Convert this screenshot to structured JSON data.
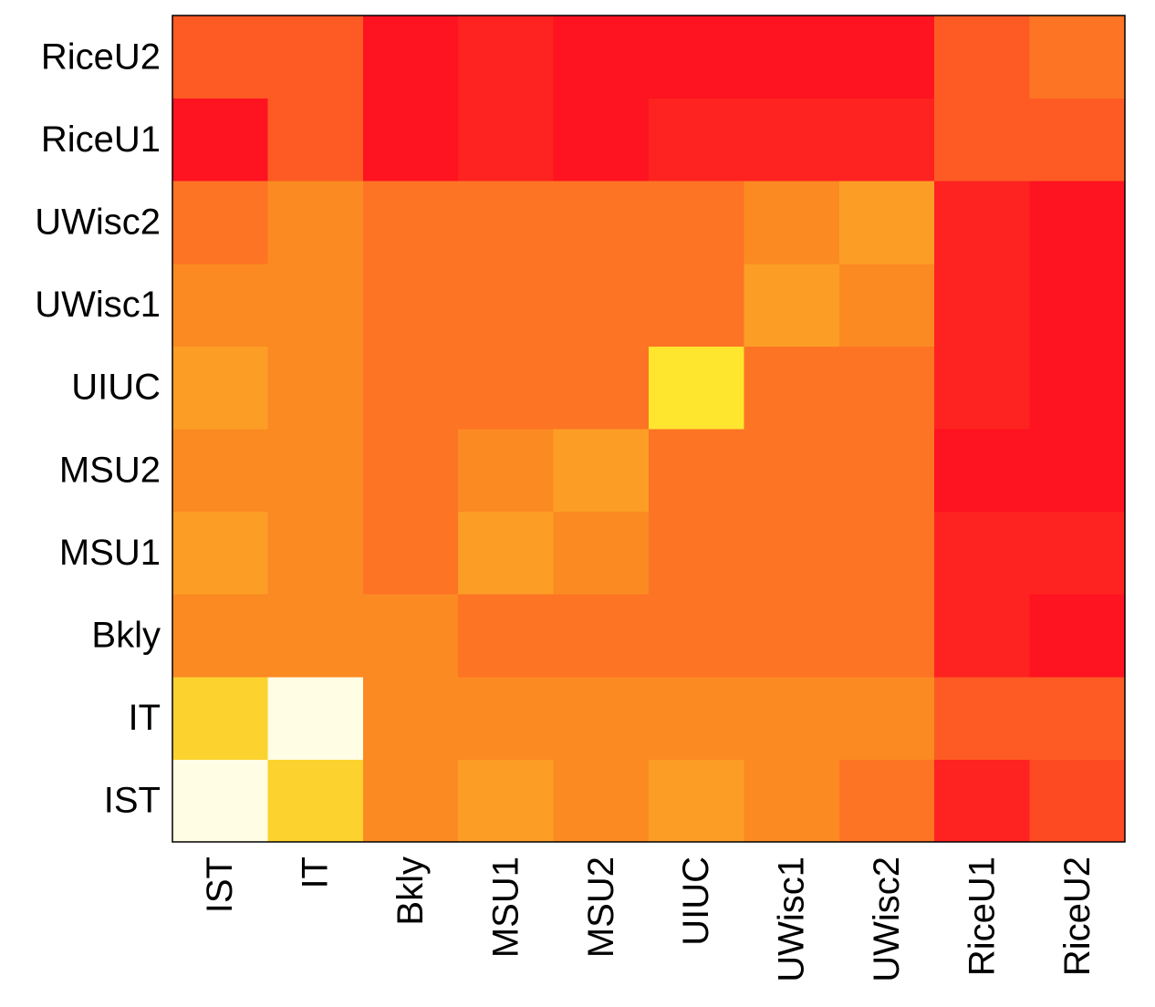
{
  "chart_data": {
    "type": "heatmap",
    "x_labels": [
      "IST",
      "IT",
      "Bkly",
      "MSU1",
      "MSU2",
      "UIUC",
      "UWisc1",
      "UWisc2",
      "RiceU1",
      "RiceU2"
    ],
    "y_labels": [
      "IST",
      "IT",
      "Bkly",
      "MSU1",
      "MSU2",
      "UIUC",
      "UWisc1",
      "UWisc2",
      "RiceU1",
      "RiceU2"
    ],
    "matrix_colors": [
      [
        "#fffde3",
        "#fcd22e",
        "#fb8a22",
        "#fc9e26",
        "#fb8a22",
        "#fc9e26",
        "#fb8a22",
        "#fd7424",
        "#fe2320",
        "#fe4a22"
      ],
      [
        "#fcd22e",
        "#fffde3",
        "#fb8a22",
        "#fb8a22",
        "#fb8a22",
        "#fb8a22",
        "#fb8a22",
        "#fb8a22",
        "#fe5b24",
        "#fe5b24"
      ],
      [
        "#fb8a22",
        "#fb8a22",
        "#fb8a22",
        "#fd7424",
        "#fd7424",
        "#fd7424",
        "#fd7424",
        "#fd7424",
        "#fe2320",
        "#fe1320"
      ],
      [
        "#fc9e26",
        "#fb8a22",
        "#fd7424",
        "#fc9e26",
        "#fb8a22",
        "#fd7424",
        "#fd7424",
        "#fd7424",
        "#fe2320",
        "#fe2320"
      ],
      [
        "#fb8a22",
        "#fb8a22",
        "#fd7424",
        "#fb8a22",
        "#fc9e26",
        "#fd7424",
        "#fd7424",
        "#fd7424",
        "#fe1320",
        "#fe1320"
      ],
      [
        "#fc9e26",
        "#fb8a22",
        "#fd7424",
        "#fd7424",
        "#fd7424",
        "#fee52e",
        "#fd7424",
        "#fd7424",
        "#fe2320",
        "#fe1320"
      ],
      [
        "#fb8a22",
        "#fb8a22",
        "#fd7424",
        "#fd7424",
        "#fd7424",
        "#fd7424",
        "#fc9e26",
        "#fb8a22",
        "#fe2320",
        "#fe1320"
      ],
      [
        "#fd7424",
        "#fb8a22",
        "#fd7424",
        "#fd7424",
        "#fd7424",
        "#fd7424",
        "#fb8a22",
        "#fc9e26",
        "#fe2320",
        "#fe1320"
      ],
      [
        "#fe1320",
        "#fe5b24",
        "#fe1320",
        "#fe2320",
        "#fe1320",
        "#fe2320",
        "#fe2320",
        "#fe2320",
        "#fe5b24",
        "#fe5b24"
      ],
      [
        "#fe5b24",
        "#fe5b24",
        "#fe1320",
        "#fe2320",
        "#fe1320",
        "#fe1320",
        "#fe1320",
        "#fe1320",
        "#fe5b24",
        "#fd7424"
      ]
    ],
    "colormap": [
      "#fffde3",
      "#fee52e",
      "#fcd22e",
      "#fc9e26",
      "#fb8a22",
      "#fd7424",
      "#fe5b24",
      "#fe4a22",
      "#fe2320",
      "#fe1320"
    ]
  }
}
